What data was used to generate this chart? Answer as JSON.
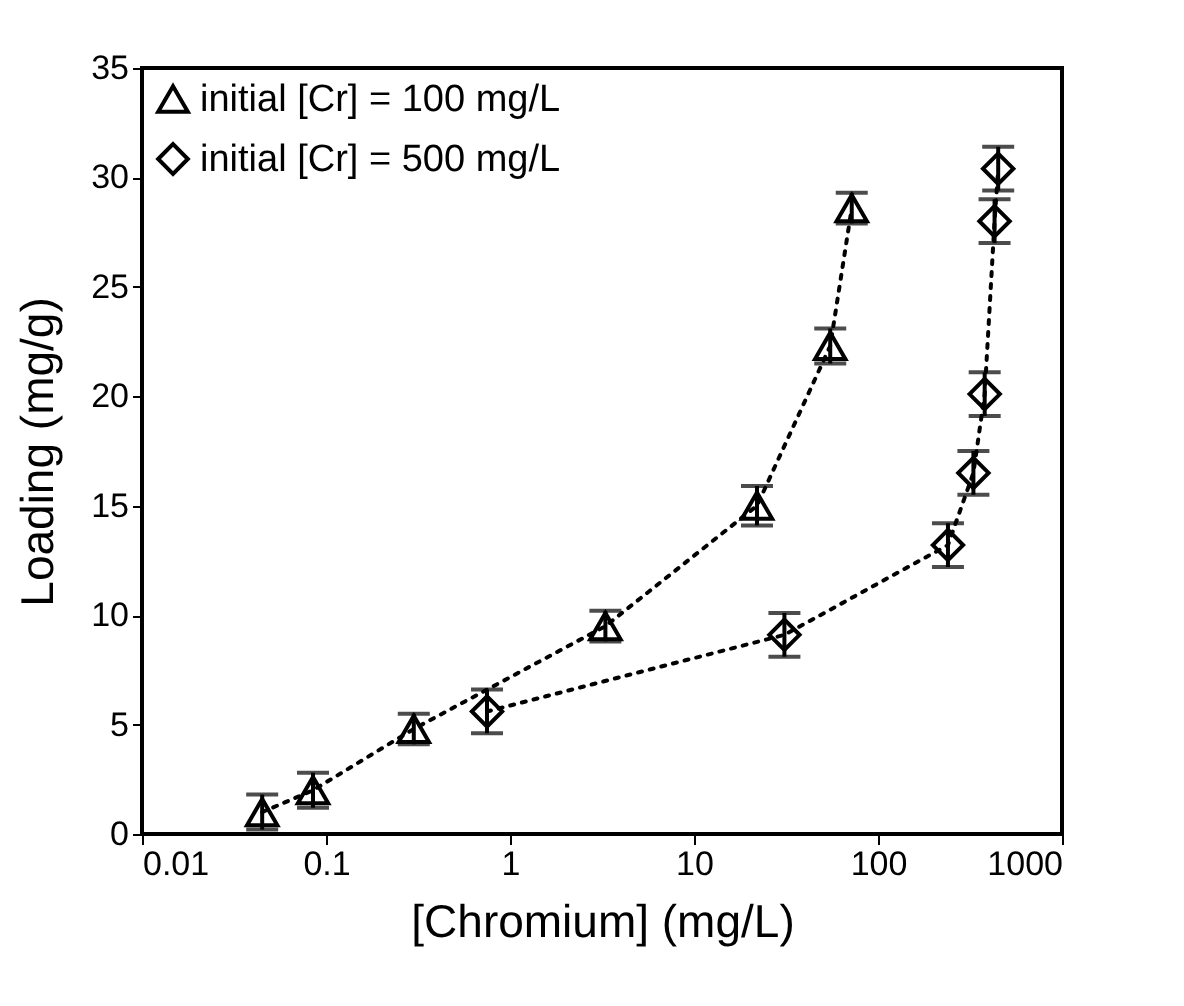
{
  "chart_data": {
    "type": "line",
    "xlabel": "[Chromium] (mg/L)",
    "ylabel": "Loading (mg/g)",
    "log": "x",
    "xlim": [
      0.01,
      1000
    ],
    "xticks": [
      0.01,
      0.1,
      1,
      10,
      100,
      1000
    ],
    "ylim": [
      0,
      35
    ],
    "yticks": [
      0,
      5,
      10,
      15,
      20,
      25,
      30,
      35
    ],
    "grid": false,
    "legend": "top left",
    "line_style": "dotted",
    "series": [
      {
        "name": "initial [Cr] = 100 mg/L",
        "color": "#000000",
        "marker": "triangle",
        "x": [
          0.045,
          0.085,
          0.3,
          3.3,
          22,
          55,
          72
        ],
        "values": [
          1,
          2,
          4.8,
          9.5,
          15,
          22.3,
          28.6
        ],
        "errors": [
          0.8,
          0.8,
          0.7,
          0.7,
          0.9,
          0.8,
          0.7
        ]
      },
      {
        "name": "initial [Cr] = 500 mg/L",
        "color": "#000000",
        "marker": "diamond",
        "x": [
          0.75,
          31,
          240,
          330,
          380,
          430,
          450
        ],
        "values": [
          5.6,
          9.1,
          13.2,
          16.5,
          20.1,
          28,
          30.4
        ],
        "errors": [
          1,
          1,
          1,
          1,
          1,
          1,
          1
        ]
      }
    ]
  }
}
